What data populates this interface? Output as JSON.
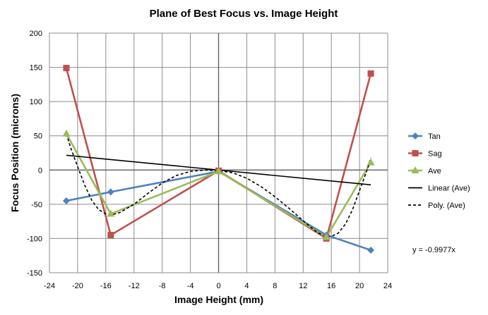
{
  "chart_data": {
    "type": "line",
    "title": "Plane of Best Focus vs. Image Height",
    "xlabel": "Image Height (mm)",
    "ylabel": "Focus Position (microns)",
    "xlim": [
      -24,
      24
    ],
    "ylim": [
      -150,
      200
    ],
    "x_ticks": [
      -24,
      -20,
      -16,
      -12,
      -8,
      -4,
      0,
      4,
      8,
      12,
      16,
      20,
      24
    ],
    "y_ticks": [
      -150,
      -100,
      -50,
      0,
      50,
      100,
      150,
      200
    ],
    "grid": true,
    "legend_position": "right",
    "equation": "y = -0.9977x",
    "series": [
      {
        "name": "Tan",
        "color": "#4f81bd",
        "marker": "diamond",
        "line_style": "solid",
        "x": [
          -21.6,
          -15.3,
          0,
          15.3,
          21.6
        ],
        "y": [
          -45,
          -32,
          -2,
          -95,
          -117
        ]
      },
      {
        "name": "Sag",
        "color": "#c0504d",
        "marker": "square",
        "line_style": "solid",
        "x": [
          -21.6,
          -15.3,
          0,
          15.3,
          21.6
        ],
        "y": [
          149,
          -95,
          -1,
          -100,
          141
        ]
      },
      {
        "name": "Ave",
        "color": "#9bbb59",
        "marker": "triangle",
        "line_style": "solid",
        "x": [
          -21.6,
          -15.3,
          0,
          15.3,
          21.6
        ],
        "y": [
          53,
          -64,
          -2,
          -98,
          11
        ]
      },
      {
        "name": "Linear (Ave)",
        "color": "#000000",
        "marker": "none",
        "line_style": "solid",
        "x": [
          -21.6,
          21.6
        ],
        "y": [
          21.6,
          -21.6
        ]
      },
      {
        "name": "Poly. (Ave)",
        "color": "#000000",
        "marker": "none",
        "line_style": "dashed",
        "x": [
          -21.6,
          -21,
          -20,
          -19,
          -18,
          -17,
          -16,
          -15,
          -14,
          -12,
          -10,
          -8,
          -6,
          -4,
          -2,
          0,
          2,
          4,
          6,
          8,
          10,
          12,
          13,
          14,
          15,
          16,
          17,
          18,
          19,
          20,
          21,
          21.6
        ],
        "y": [
          53,
          33,
          5,
          -22,
          -44,
          -58,
          -64,
          -65,
          -62,
          -50,
          -34,
          -19,
          -8,
          -2,
          0,
          -1,
          -4,
          -12,
          -24,
          -39,
          -56,
          -74,
          -83,
          -91,
          -96,
          -97,
          -92,
          -79,
          -58,
          -30,
          -2,
          18
        ]
      }
    ]
  }
}
